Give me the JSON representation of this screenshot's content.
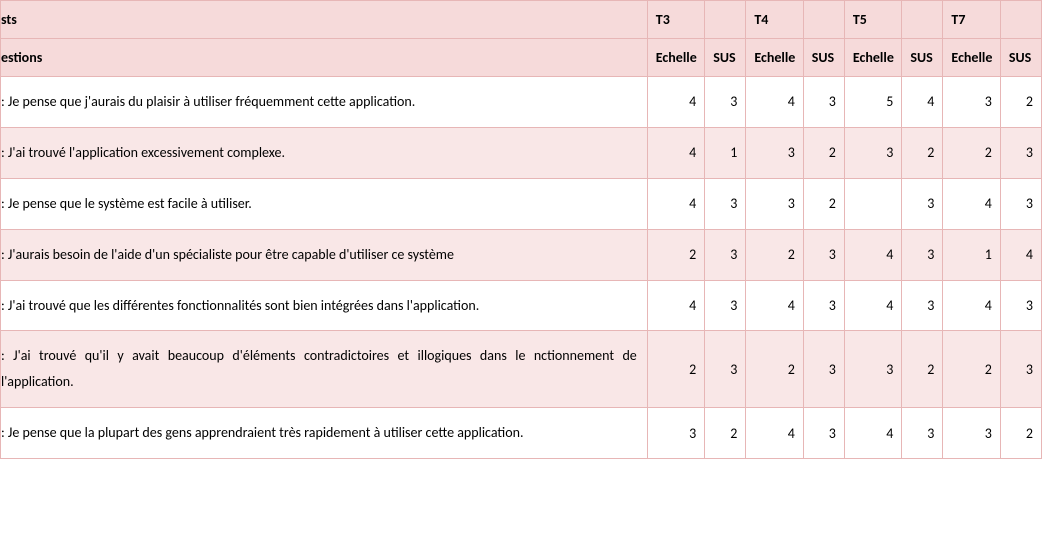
{
  "type": "table",
  "colors": {
    "header_bg": "#f6dada",
    "row_alt_bg": "#f9e7e7",
    "row_bg": "#ffffff",
    "border": "#e7b6b6",
    "text": "#000000"
  },
  "header": {
    "tests_label": "sts",
    "questions_label": "estions",
    "echelle_label": "Echelle",
    "sus_label": "SUS",
    "tests": [
      "T3",
      "T4",
      "T5",
      "T7"
    ]
  },
  "rows": [
    {
      "q": ": Je pense que j'aurais du plaisir à utiliser fréquemment cette application.",
      "v": [
        "4",
        "3",
        "4",
        "3",
        "5",
        "4",
        "3",
        "2"
      ]
    },
    {
      "q": ": J'ai trouvé l'application excessivement complexe.",
      "v": [
        "4",
        "1",
        "3",
        "2",
        "3",
        "2",
        "2",
        "3"
      ]
    },
    {
      "q": ": Je pense que le système est facile à utiliser.",
      "v": [
        "4",
        "3",
        "3",
        "2",
        "",
        "3",
        "4",
        "3"
      ]
    },
    {
      "q": ": J'aurais besoin de l'aide d'un spécialiste pour être capable d'utiliser ce système",
      "v": [
        "2",
        "3",
        "2",
        "3",
        "4",
        "3",
        "1",
        "4"
      ]
    },
    {
      "q": ": J'ai trouvé que les différentes fonctionnalités sont bien intégrées dans l'application.",
      "v": [
        "4",
        "3",
        "4",
        "3",
        "4",
        "3",
        "4",
        "3"
      ]
    },
    {
      "q": ": J'ai trouvé qu'il y avait beaucoup d'éléments contradictoires et illogiques dans le nctionnement de l'application.",
      "v": [
        "2",
        "3",
        "2",
        "3",
        "3",
        "2",
        "2",
        "3"
      ]
    },
    {
      "q": ": Je pense que la plupart des gens apprendraient très rapidement à utiliser cette application.",
      "v": [
        "3",
        "2",
        "4",
        "3",
        "4",
        "3",
        "3",
        "2"
      ]
    }
  ]
}
